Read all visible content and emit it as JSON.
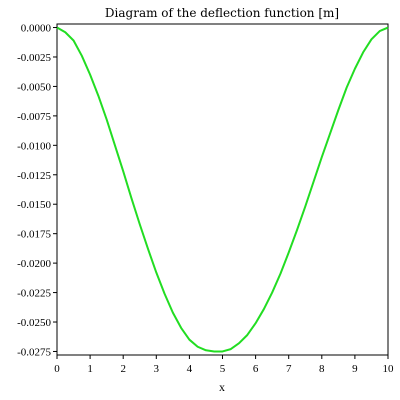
{
  "chart_data": {
    "type": "line",
    "title": "Diagram of the deflection function [m]",
    "xlabel": "x",
    "ylabel": "",
    "xlim": [
      0,
      10
    ],
    "ylim": [
      -0.0278,
      0.0003
    ],
    "xticks": [
      "0",
      "1",
      "2",
      "3",
      "4",
      "5",
      "6",
      "7",
      "8",
      "9",
      "10"
    ],
    "yticks": [
      "0.0000",
      "-0.0025",
      "-0.0050",
      "-0.0075",
      "-0.0100",
      "-0.0125",
      "-0.0150",
      "-0.0175",
      "-0.0200",
      "-0.0225",
      "-0.0250",
      "-0.0275"
    ],
    "grid": false,
    "series": [
      {
        "color": "#22dd22",
        "x": [
          0,
          0.25,
          0.5,
          0.75,
          1,
          1.25,
          1.5,
          1.75,
          2,
          2.25,
          2.5,
          2.75,
          3,
          3.25,
          3.5,
          3.75,
          4,
          4.25,
          4.5,
          4.75,
          5,
          5.25,
          5.5,
          5.75,
          6,
          6.25,
          6.5,
          6.75,
          7,
          7.25,
          7.5,
          7.75,
          8,
          8.25,
          8.5,
          8.75,
          9,
          9.25,
          9.5,
          9.75,
          10
        ],
        "values": [
          0.0,
          -0.0004,
          -0.0011,
          -0.0024,
          -0.004,
          -0.0058,
          -0.0078,
          -0.01,
          -0.0122,
          -0.0145,
          -0.0167,
          -0.0188,
          -0.0208,
          -0.0226,
          -0.0242,
          -0.0255,
          -0.0265,
          -0.0271,
          -0.0274,
          -0.0275,
          -0.0275,
          -0.0273,
          -0.0268,
          -0.0261,
          -0.0251,
          -0.0239,
          -0.0225,
          -0.0209,
          -0.0191,
          -0.0172,
          -0.0152,
          -0.0131,
          -0.011,
          -0.009,
          -0.007,
          -0.0051,
          -0.0035,
          -0.0021,
          -0.001,
          -0.0003,
          0.0
        ]
      }
    ]
  }
}
